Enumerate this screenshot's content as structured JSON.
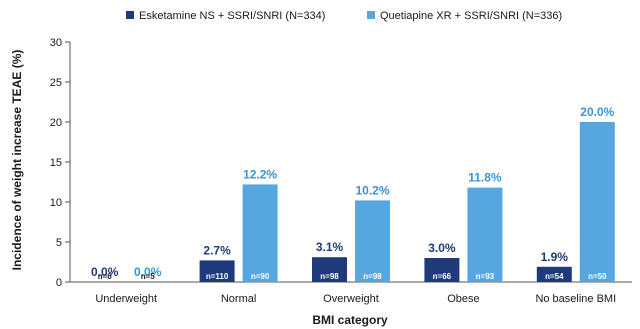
{
  "chart_data": {
    "type": "bar",
    "title": "",
    "xlabel": "BMI category",
    "ylabel": "Incidence of weight increase TEAE (%)",
    "ylim": [
      0,
      30
    ],
    "yticks": [
      0,
      5,
      10,
      15,
      20,
      25,
      30
    ],
    "grid": false,
    "legend_position": "top",
    "categories": [
      "Underweight",
      "Normal",
      "Overweight",
      "Obese",
      "No baseline BMI"
    ],
    "series": [
      {
        "name": "Esketamine NS + SSRI/SNRI (N=334)",
        "color": "#1f3a7a",
        "label_color": "#1f3a7a",
        "values": [
          0.0,
          2.7,
          3.1,
          3.0,
          1.9
        ],
        "value_labels": [
          "0.0%",
          "2.7%",
          "3.1%",
          "3.0%",
          "1.9%"
        ],
        "n_labels": [
          "n=6",
          "n=110",
          "n=98",
          "n=66",
          "n=54"
        ]
      },
      {
        "name": "Quetiapine XR + SSRI/SNRI (N=336)",
        "color": "#56a6e0",
        "label_color": "#3b93d6",
        "values": [
          0.0,
          12.2,
          10.2,
          11.8,
          20.0
        ],
        "value_labels": [
          "0.0%",
          "12.2%",
          "10.2%",
          "11.8%",
          "20.0%"
        ],
        "n_labels": [
          "n=5",
          "n=90",
          "n=98",
          "n=93",
          "n=50"
        ]
      }
    ]
  }
}
